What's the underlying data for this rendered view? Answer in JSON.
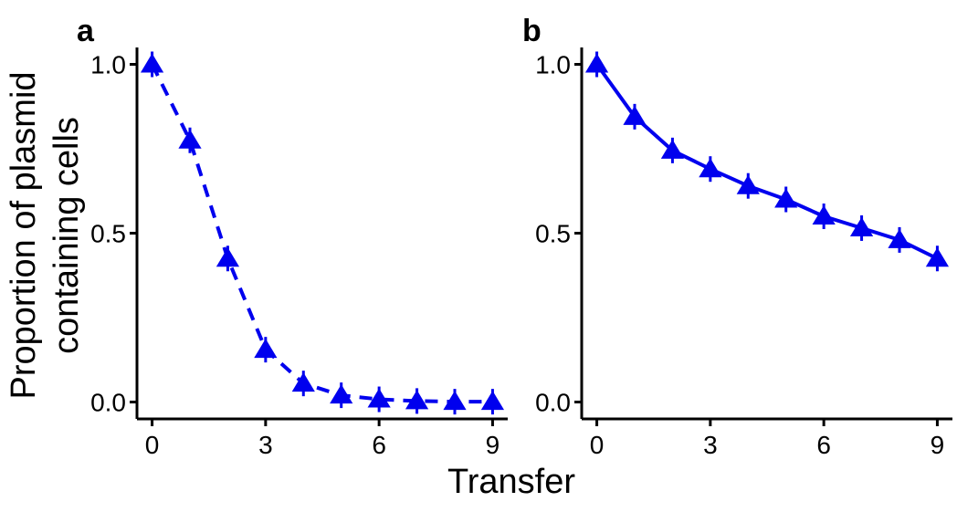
{
  "figure": {
    "xlabel": "Transfer",
    "ylabel_lines": [
      "Proportion of plasmid",
      "containing cells"
    ]
  },
  "colors": {
    "series": "#0000ee",
    "axis": "#000000"
  },
  "chart_data": [
    {
      "panel": "a",
      "type": "line",
      "line_style": "dashed",
      "marker": "triangle",
      "x": [
        0,
        1,
        2,
        3,
        4,
        5,
        6,
        7,
        8,
        9
      ],
      "series": [
        {
          "values": [
            1.0,
            0.775,
            0.425,
            0.155,
            0.055,
            0.02,
            0.008,
            0.003,
            0.001,
            0.001
          ]
        }
      ],
      "xlim": [
        -0.4,
        9.4
      ],
      "ylim": [
        -0.05,
        1.05
      ],
      "xticks": [
        0,
        3,
        6,
        9
      ],
      "yticks": [
        0.0,
        0.5,
        1.0
      ],
      "xtick_labels": [
        "0",
        "3",
        "6",
        "9"
      ],
      "ytick_labels": [
        "0.0",
        "0.5",
        "1.0"
      ],
      "grid": false
    },
    {
      "panel": "b",
      "type": "line",
      "line_style": "solid",
      "marker": "triangle",
      "x": [
        0,
        1,
        2,
        3,
        4,
        5,
        6,
        7,
        8,
        9
      ],
      "series": [
        {
          "values": [
            1.0,
            0.845,
            0.745,
            0.69,
            0.64,
            0.6,
            0.55,
            0.515,
            0.48,
            0.425
          ]
        }
      ],
      "xlim": [
        -0.4,
        9.4
      ],
      "ylim": [
        -0.05,
        1.05
      ],
      "xticks": [
        0,
        3,
        6,
        9
      ],
      "yticks": [
        0.0,
        0.5,
        1.0
      ],
      "xtick_labels": [
        "0",
        "3",
        "6",
        "9"
      ],
      "ytick_labels": [
        "0.0",
        "0.5",
        "1.0"
      ],
      "grid": false
    }
  ]
}
